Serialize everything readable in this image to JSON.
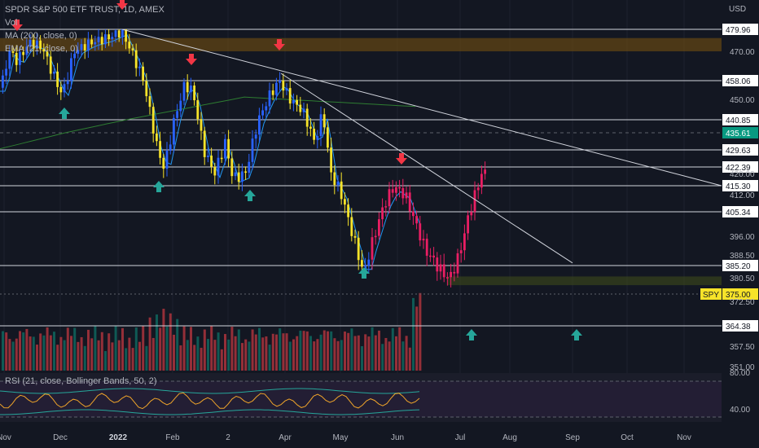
{
  "legend": {
    "title": "SPDR S&P 500 ETF TRUST, 1D, AMEX",
    "vol": "Vol",
    "ma": "MA (200, close, 0)",
    "ema": "EMA (21, close, 0)",
    "rsi": "RSI (21, close, Bollinger Bands, 50, 2)"
  },
  "currency": "USD",
  "ticker_badge": "SPY",
  "chart_data": {
    "type": "candlestick",
    "title": "SPDR S&P 500 ETF TRUST, 1D, AMEX",
    "price_axis_ticks": [
      {
        "label": "470.00",
        "value": 470.0
      },
      {
        "label": "450.00",
        "value": 450.0
      },
      {
        "label": "420.00",
        "value": 420.0
      },
      {
        "label": "412.00",
        "value": 412.0
      },
      {
        "label": "396.00",
        "value": 396.0
      },
      {
        "label": "388.50",
        "value": 388.5
      },
      {
        "label": "380.50",
        "value": 380.5
      },
      {
        "label": "372.50",
        "value": 372.5
      },
      {
        "label": "357.50",
        "value": 357.5
      },
      {
        "label": "351.00",
        "value": 351.0
      }
    ],
    "horizontal_levels": [
      {
        "label": "479.96",
        "value": 479.96
      },
      {
        "label": "458.06",
        "value": 458.06
      },
      {
        "label": "440.85",
        "value": 440.85
      },
      {
        "label": "429.63",
        "value": 429.63
      },
      {
        "label": "422.39",
        "value": 422.39
      },
      {
        "label": "415.30",
        "value": 415.3
      },
      {
        "label": "405.34",
        "value": 405.34
      },
      {
        "label": "385.20",
        "value": 385.2
      },
      {
        "label": "364.38",
        "value": 364.38
      }
    ],
    "last_price": {
      "label": "435.61",
      "value": 435.61,
      "color": "#089981"
    },
    "spy_level": {
      "label": "375.00",
      "value": 375.0
    },
    "x_axis_labels": [
      "Nov",
      "Dec",
      "2022",
      "Feb",
      "2",
      "Apr",
      "May",
      "Jun",
      "Jul",
      "Aug",
      "Sep",
      "Oct",
      "Nov"
    ],
    "rsi_axis_ticks": [
      "80.00",
      "40.00"
    ],
    "supply_zone": [
      470.0,
      476.0
    ],
    "demand_zone": [
      378.0,
      381.0
    ],
    "trendlines": [
      {
        "from": [
          "Jan 4",
          479.96
        ],
        "to": [
          "Sep 28",
          415.3
        ]
      },
      {
        "from": [
          "Mar 29",
          461
        ],
        "to": [
          "Sep 1",
          386
        ]
      }
    ],
    "colors": {
      "up": "#2962ff",
      "down": "#f7e329",
      "recent": "#e91e63",
      "ma200": "#2e7d32",
      "ema21": "#2196f3",
      "arrow_up": "#26a69a",
      "arrow_down": "#f23645",
      "vol_up": "#0f6b63",
      "vol_down": "#b5363f"
    }
  }
}
